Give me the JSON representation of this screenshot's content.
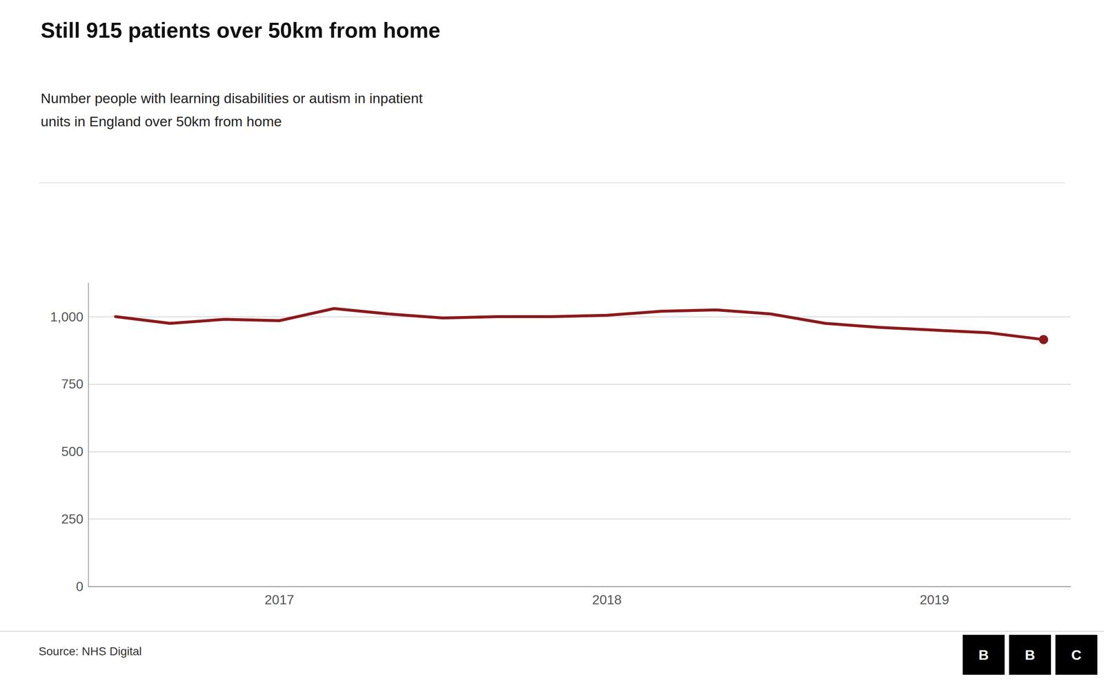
{
  "chart_data": {
    "type": "line",
    "title": "Still 915 patients over 50km from home",
    "subtitle": [
      "Number people with learning disabilities or autism in inpatient",
      "units in England over 50km from home"
    ],
    "annotations": [
      "Source: NHS Digital",
      "BBC"
    ],
    "categories": [
      null,
      null,
      null,
      "2017",
      null,
      null,
      null,
      null,
      null,
      "2018",
      null,
      null,
      null,
      null,
      null,
      "2019",
      null,
      null
    ],
    "values": [
      1000,
      975,
      990,
      985,
      1030,
      1010,
      995,
      1000,
      1000,
      1005,
      1020,
      1025,
      1010,
      975,
      960,
      950,
      940,
      915
    ],
    "color": "#8B1A1A",
    "ylim": [
      0,
      1125
    ],
    "yticks": [
      0,
      250,
      500,
      750,
      {
        "value": 1000,
        "label": "1,000"
      }
    ],
    "grid": true
  }
}
